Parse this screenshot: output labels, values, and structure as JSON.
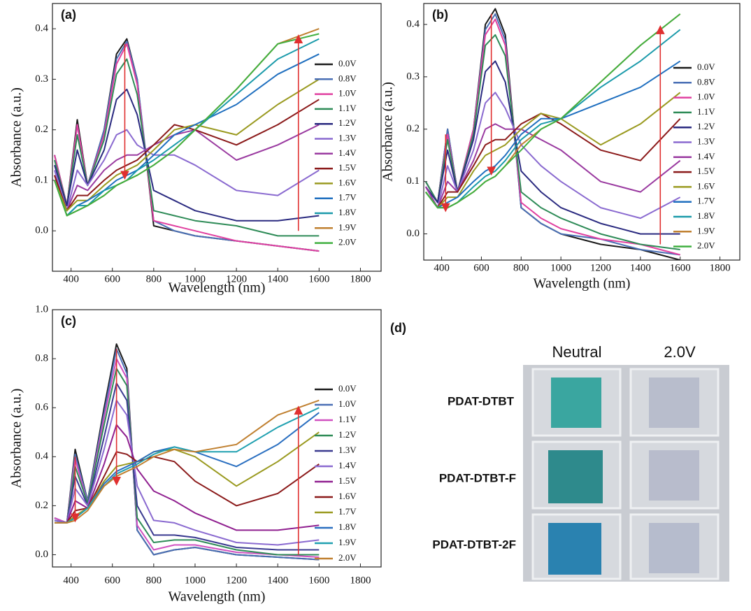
{
  "chart_data": [
    {
      "type": "line",
      "label": "(a)",
      "y_label": "Absorbance (a.u.)",
      "x_label": "Wavelength (nm)",
      "x": [
        320,
        380,
        430,
        480,
        560,
        620,
        670,
        720,
        800,
        900,
        1000,
        1200,
        1400,
        1600
      ],
      "xlim": [
        310,
        1900
      ],
      "xticks": [
        400,
        600,
        800,
        1000,
        1200,
        1400,
        1600,
        1800
      ],
      "ylim": [
        -0.08,
        0.45
      ],
      "yticks": [
        {
          "value": 0,
          "label": "0.0"
        },
        0.1,
        0.2,
        0.3,
        0.4
      ],
      "legend": "right",
      "series": [
        {
          "name": "0.0V",
          "color": "#1a1a1a",
          "values": [
            0.15,
            0.05,
            0.22,
            0.09,
            0.2,
            0.35,
            0.38,
            0.3,
            0.01,
            0.0,
            -0.01,
            -0.02,
            -0.03,
            -0.04
          ]
        },
        {
          "name": "0.8V",
          "color": "#4a6fb5",
          "values": [
            0.15,
            0.05,
            0.21,
            0.09,
            0.2,
            0.34,
            0.375,
            0.3,
            0.02,
            0.0,
            -0.01,
            -0.02,
            -0.03,
            -0.04
          ]
        },
        {
          "name": "1.0V",
          "color": "#e040a0",
          "values": [
            0.15,
            0.05,
            0.21,
            0.09,
            0.19,
            0.33,
            0.37,
            0.29,
            0.02,
            0.01,
            0.0,
            -0.02,
            -0.03,
            -0.04
          ]
        },
        {
          "name": "1.1V",
          "color": "#2e8b57",
          "values": [
            0.14,
            0.05,
            0.19,
            0.09,
            0.18,
            0.31,
            0.34,
            0.27,
            0.04,
            0.03,
            0.02,
            0.01,
            -0.01,
            -0.01
          ]
        },
        {
          "name": "1.2V",
          "color": "#2a2a80",
          "values": [
            0.13,
            0.05,
            0.16,
            0.09,
            0.16,
            0.26,
            0.28,
            0.23,
            0.08,
            0.06,
            0.04,
            0.02,
            0.02,
            0.03
          ]
        },
        {
          "name": "1.3V",
          "color": "#8a6ad0",
          "values": [
            0.12,
            0.04,
            0.12,
            0.09,
            0.14,
            0.19,
            0.2,
            0.17,
            0.15,
            0.15,
            0.13,
            0.08,
            0.07,
            0.12
          ]
        },
        {
          "name": "1.4V",
          "color": "#9a3aa0",
          "values": [
            0.11,
            0.04,
            0.09,
            0.08,
            0.12,
            0.14,
            0.15,
            0.15,
            0.17,
            0.19,
            0.2,
            0.14,
            0.17,
            0.21
          ]
        },
        {
          "name": "1.5V",
          "color": "#8b1a1a",
          "values": [
            0.11,
            0.04,
            0.07,
            0.07,
            0.1,
            0.12,
            0.13,
            0.14,
            0.17,
            0.21,
            0.2,
            0.17,
            0.21,
            0.26
          ]
        },
        {
          "name": "1.6V",
          "color": "#9a9a20",
          "values": [
            0.1,
            0.04,
            0.06,
            0.06,
            0.09,
            0.11,
            0.12,
            0.13,
            0.16,
            0.2,
            0.21,
            0.19,
            0.25,
            0.3
          ]
        },
        {
          "name": "1.7V",
          "color": "#1f6fbf",
          "values": [
            0.1,
            0.03,
            0.05,
            0.06,
            0.08,
            0.1,
            0.11,
            0.12,
            0.15,
            0.19,
            0.21,
            0.25,
            0.31,
            0.35
          ]
        },
        {
          "name": "1.8V",
          "color": "#1a9aaa",
          "values": [
            0.1,
            0.03,
            0.05,
            0.05,
            0.08,
            0.09,
            0.1,
            0.12,
            0.14,
            0.17,
            0.2,
            0.27,
            0.34,
            0.38
          ]
        },
        {
          "name": "1.9V",
          "color": "#c08030",
          "values": [
            0.1,
            0.03,
            0.04,
            0.05,
            0.07,
            0.09,
            0.1,
            0.11,
            0.13,
            0.16,
            0.2,
            0.28,
            0.37,
            0.4
          ]
        },
        {
          "name": "2.0V",
          "color": "#40b040",
          "values": [
            0.1,
            0.03,
            0.04,
            0.05,
            0.07,
            0.09,
            0.1,
            0.11,
            0.13,
            0.16,
            0.2,
            0.28,
            0.37,
            0.39
          ]
        }
      ],
      "arrows": [
        {
          "x": 660,
          "y": [
            0.37,
            0.11
          ]
        },
        {
          "x": 1500,
          "y": [
            0.0,
            0.38
          ]
        }
      ]
    },
    {
      "type": "line",
      "label": "(b)",
      "y_label": "Absorbance (a.u.)",
      "x_label": "Wavelength (nm)",
      "x": [
        320,
        380,
        430,
        480,
        560,
        620,
        670,
        720,
        800,
        900,
        1000,
        1200,
        1400,
        1600
      ],
      "xlim": [
        310,
        1900
      ],
      "xticks": [
        400,
        600,
        800,
        1000,
        1200,
        1400,
        1600,
        1800
      ],
      "ylim": [
        -0.05,
        0.44
      ],
      "yticks": [
        {
          "value": 0,
          "label": "0.0"
        },
        0.1,
        0.2,
        0.3,
        0.4
      ],
      "legend": "right",
      "series": [
        {
          "name": "0.0V",
          "color": "#1a1a1a",
          "values": [
            0.1,
            0.06,
            0.2,
            0.08,
            0.2,
            0.4,
            0.43,
            0.38,
            0.05,
            0.02,
            0.0,
            -0.02,
            -0.03,
            -0.05
          ]
        },
        {
          "name": "0.8V",
          "color": "#4a6fb5",
          "values": [
            0.1,
            0.06,
            0.2,
            0.08,
            0.2,
            0.39,
            0.42,
            0.37,
            0.05,
            0.02,
            0.0,
            -0.01,
            -0.03,
            -0.04
          ]
        },
        {
          "name": "1.0V",
          "color": "#e040a0",
          "values": [
            0.1,
            0.06,
            0.19,
            0.08,
            0.2,
            0.38,
            0.41,
            0.36,
            0.06,
            0.03,
            0.01,
            -0.01,
            -0.02,
            -0.04
          ]
        },
        {
          "name": "1.1V",
          "color": "#2e8b57",
          "values": [
            0.1,
            0.06,
            0.18,
            0.08,
            0.19,
            0.36,
            0.38,
            0.34,
            0.08,
            0.05,
            0.03,
            0.0,
            -0.02,
            -0.03
          ]
        },
        {
          "name": "1.2V",
          "color": "#2a2a80",
          "values": [
            0.09,
            0.06,
            0.16,
            0.08,
            0.18,
            0.31,
            0.33,
            0.29,
            0.12,
            0.08,
            0.05,
            0.02,
            0.0,
            0.0
          ]
        },
        {
          "name": "1.3V",
          "color": "#8a6ad0",
          "values": [
            0.09,
            0.05,
            0.13,
            0.08,
            0.16,
            0.25,
            0.27,
            0.24,
            0.17,
            0.13,
            0.1,
            0.05,
            0.03,
            0.07
          ]
        },
        {
          "name": "1.4V",
          "color": "#9a3aa0",
          "values": [
            0.09,
            0.05,
            0.1,
            0.08,
            0.14,
            0.2,
            0.21,
            0.2,
            0.2,
            0.18,
            0.16,
            0.1,
            0.08,
            0.14
          ]
        },
        {
          "name": "1.5V",
          "color": "#8b1a1a",
          "values": [
            0.08,
            0.05,
            0.08,
            0.08,
            0.13,
            0.17,
            0.18,
            0.18,
            0.21,
            0.23,
            0.21,
            0.16,
            0.14,
            0.22
          ]
        },
        {
          "name": "1.6V",
          "color": "#9a9a20",
          "values": [
            0.08,
            0.05,
            0.07,
            0.07,
            0.12,
            0.15,
            0.16,
            0.17,
            0.2,
            0.23,
            0.22,
            0.17,
            0.21,
            0.27
          ]
        },
        {
          "name": "1.7V",
          "color": "#1f6fbf",
          "values": [
            0.08,
            0.05,
            0.06,
            0.07,
            0.1,
            0.12,
            0.13,
            0.15,
            0.19,
            0.22,
            0.22,
            0.25,
            0.28,
            0.33
          ]
        },
        {
          "name": "1.8V",
          "color": "#1a9aaa",
          "values": [
            0.08,
            0.05,
            0.05,
            0.06,
            0.09,
            0.11,
            0.12,
            0.14,
            0.18,
            0.21,
            0.22,
            0.28,
            0.33,
            0.39
          ]
        },
        {
          "name": "1.9V",
          "color": "#c08030",
          "values": [
            0.08,
            0.05,
            0.05,
            0.06,
            0.08,
            0.1,
            0.11,
            0.13,
            0.17,
            0.2,
            0.22,
            0.29,
            0.36,
            0.42
          ]
        },
        {
          "name": "2.0V",
          "color": "#40b040",
          "values": [
            0.08,
            0.05,
            0.05,
            0.06,
            0.08,
            0.1,
            0.11,
            0.13,
            0.16,
            0.2,
            0.22,
            0.29,
            0.36,
            0.42
          ]
        }
      ],
      "arrows": [
        {
          "x": 420,
          "y": [
            0.19,
            0.05
          ]
        },
        {
          "x": 650,
          "y": [
            0.42,
            0.12
          ]
        },
        {
          "x": 1500,
          "y": [
            -0.02,
            0.39
          ]
        }
      ]
    },
    {
      "type": "line",
      "label": "(c)",
      "y_label": "Absorbance (a.u.)",
      "x_label": "Wavelength (nm)",
      "x": [
        320,
        380,
        420,
        480,
        560,
        620,
        670,
        720,
        800,
        900,
        1000,
        1200,
        1400,
        1600
      ],
      "xlim": [
        310,
        1900
      ],
      "xticks": [
        400,
        600,
        800,
        1000,
        1200,
        1400,
        1600,
        1800
      ],
      "ylim": [
        -0.05,
        1.0
      ],
      "yticks": [
        {
          "value": 0,
          "label": "0.0"
        },
        0.2,
        0.4,
        0.6,
        0.8,
        {
          "value": 1,
          "label": "1.0"
        }
      ],
      "legend": "right",
      "series": [
        {
          "name": "0.0V",
          "color": "#1a1a1a",
          "values": [
            0.15,
            0.13,
            0.43,
            0.22,
            0.6,
            0.86,
            0.76,
            0.1,
            0.0,
            0.02,
            0.03,
            0.0,
            -0.01,
            -0.02
          ]
        },
        {
          "name": "1.0V",
          "color": "#4a6fb5",
          "values": [
            0.15,
            0.13,
            0.41,
            0.22,
            0.58,
            0.84,
            0.74,
            0.1,
            0.0,
            0.02,
            0.03,
            0.0,
            -0.01,
            -0.02
          ]
        },
        {
          "name": "1.1V",
          "color": "#d050c0",
          "values": [
            0.15,
            0.13,
            0.39,
            0.21,
            0.56,
            0.8,
            0.72,
            0.12,
            0.02,
            0.04,
            0.04,
            0.01,
            0.0,
            -0.01
          ]
        },
        {
          "name": "1.2V",
          "color": "#2e8b57",
          "values": [
            0.14,
            0.13,
            0.36,
            0.21,
            0.53,
            0.76,
            0.69,
            0.15,
            0.05,
            0.06,
            0.06,
            0.02,
            0.0,
            0.0
          ]
        },
        {
          "name": "1.3V",
          "color": "#3a3a90",
          "values": [
            0.14,
            0.13,
            0.32,
            0.2,
            0.48,
            0.7,
            0.63,
            0.2,
            0.08,
            0.08,
            0.07,
            0.03,
            0.02,
            0.02
          ]
        },
        {
          "name": "1.4V",
          "color": "#8a6ad0",
          "values": [
            0.14,
            0.13,
            0.27,
            0.2,
            0.43,
            0.63,
            0.57,
            0.28,
            0.14,
            0.13,
            0.1,
            0.05,
            0.04,
            0.06
          ]
        },
        {
          "name": "1.5V",
          "color": "#902090",
          "values": [
            0.13,
            0.13,
            0.22,
            0.19,
            0.37,
            0.53,
            0.48,
            0.35,
            0.26,
            0.22,
            0.17,
            0.1,
            0.1,
            0.12
          ]
        },
        {
          "name": "1.6V",
          "color": "#8b1a1a",
          "values": [
            0.13,
            0.13,
            0.18,
            0.19,
            0.32,
            0.42,
            0.41,
            0.38,
            0.4,
            0.38,
            0.3,
            0.2,
            0.25,
            0.37
          ]
        },
        {
          "name": "1.7V",
          "color": "#9a9a20",
          "values": [
            0.13,
            0.13,
            0.16,
            0.19,
            0.3,
            0.36,
            0.37,
            0.38,
            0.42,
            0.43,
            0.4,
            0.28,
            0.38,
            0.5
          ]
        },
        {
          "name": "1.8V",
          "color": "#2a6fc0",
          "values": [
            0.13,
            0.13,
            0.15,
            0.19,
            0.29,
            0.34,
            0.36,
            0.38,
            0.42,
            0.44,
            0.42,
            0.36,
            0.45,
            0.58
          ]
        },
        {
          "name": "1.9V",
          "color": "#20a0b0",
          "values": [
            0.13,
            0.13,
            0.15,
            0.19,
            0.28,
            0.33,
            0.35,
            0.37,
            0.41,
            0.44,
            0.42,
            0.42,
            0.52,
            0.6
          ]
        },
        {
          "name": "2.0V",
          "color": "#c08030",
          "values": [
            0.13,
            0.13,
            0.14,
            0.18,
            0.28,
            0.32,
            0.34,
            0.36,
            0.4,
            0.43,
            0.42,
            0.45,
            0.57,
            0.63
          ]
        }
      ],
      "arrows": [
        {
          "x": 420,
          "y": [
            0.4,
            0.15
          ]
        },
        {
          "x": 620,
          "y": [
            0.84,
            0.3
          ]
        },
        {
          "x": 1500,
          "y": [
            0.0,
            0.59
          ]
        }
      ]
    }
  ],
  "photo_panel": {
    "label": "(d)",
    "columns": [
      "Neutral",
      "2.0V"
    ],
    "rows": [
      "PDAT-DTBT",
      "PDAT-DTBT-F",
      "PDAT-DTBT-2F"
    ]
  }
}
